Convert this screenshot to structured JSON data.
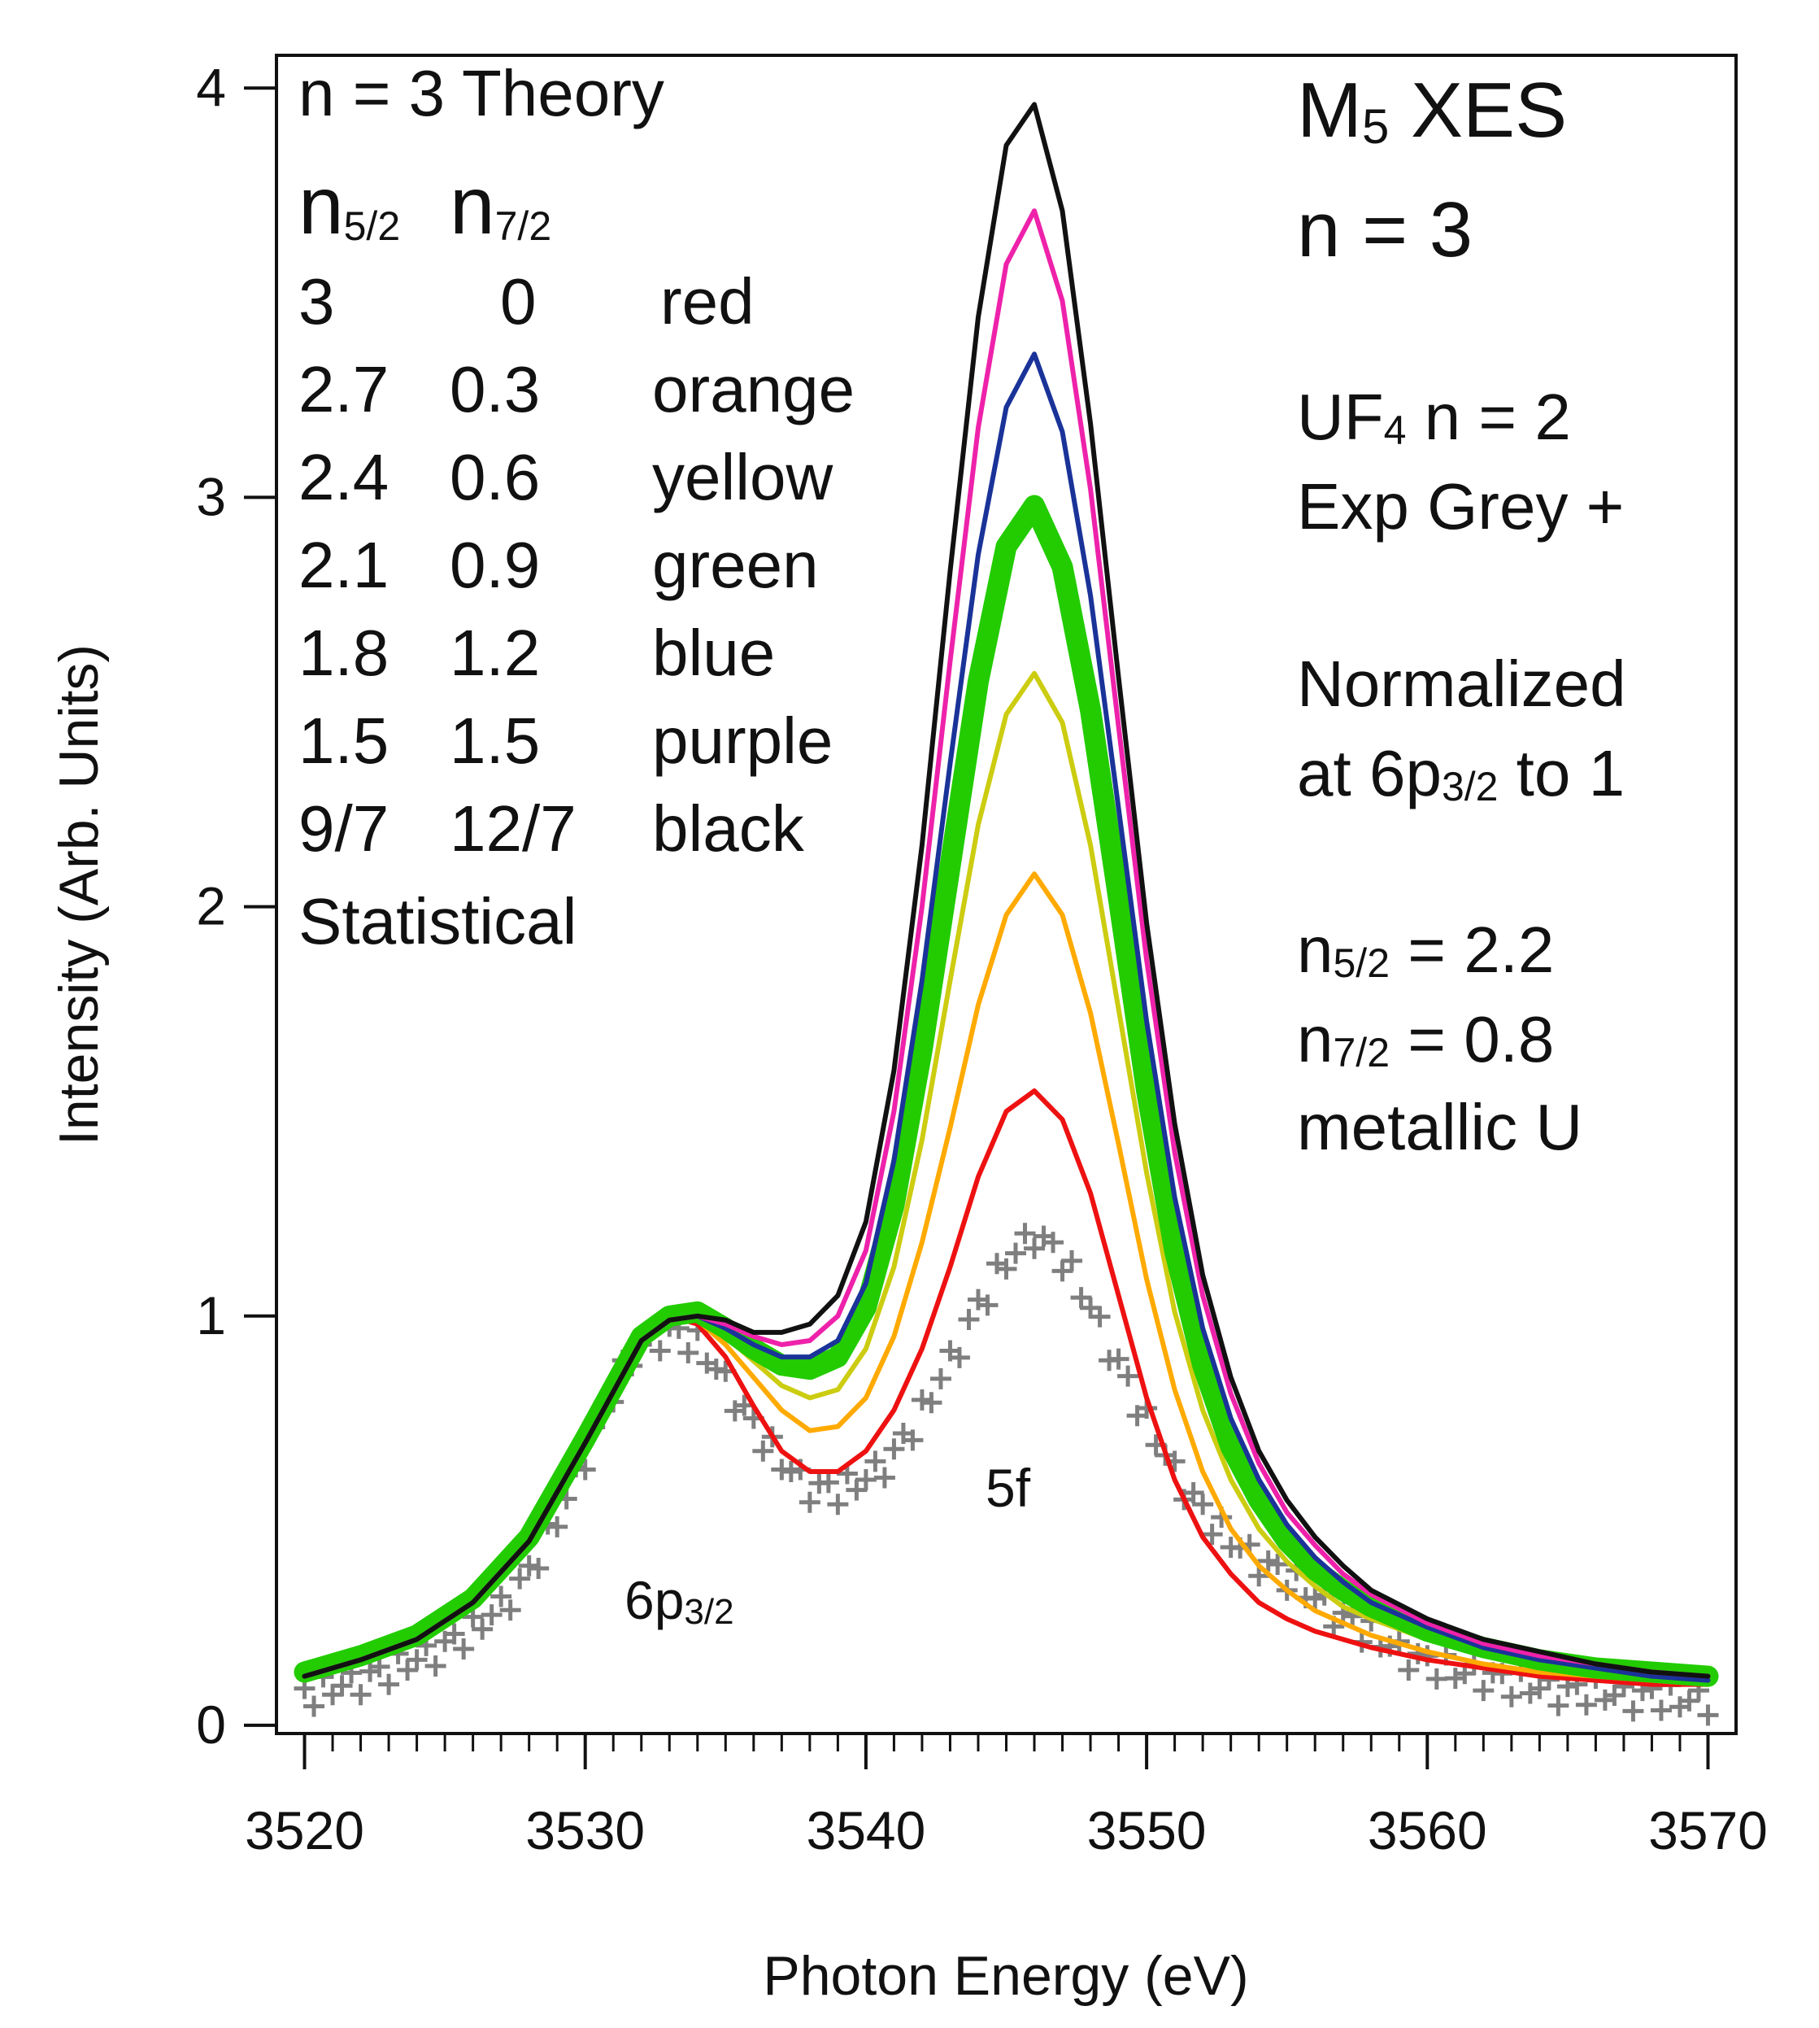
{
  "chart_data": {
    "type": "line",
    "xlabel": "Photon Energy (eV)",
    "ylabel": "Intensity (Arb. Units)",
    "xlim": [
      3519,
      3571
    ],
    "ylim": [
      -0.02,
      4.08
    ],
    "xticks": [
      3520,
      3530,
      3540,
      3550,
      3560,
      3570
    ],
    "yticks": [
      0,
      1,
      2,
      3,
      4
    ],
    "x_minor_step": 1,
    "grid": false,
    "legend_text": {
      "theory": "n = 3 Theory",
      "header": [
        {
          "base": "n",
          "sub": "5/2"
        },
        {
          "base": "n",
          "sub": "7/2"
        }
      ],
      "rows": [
        [
          "3",
          "0",
          "red"
        ],
        [
          "2.7",
          "0.3",
          "orange"
        ],
        [
          "2.4",
          "0.6",
          "yellow"
        ],
        [
          "2.1",
          "0.9",
          "green"
        ],
        [
          "1.8",
          "1.2",
          "blue"
        ],
        [
          "1.5",
          "1.5",
          "purple"
        ],
        [
          "9/7",
          "12/7",
          "black"
        ]
      ],
      "statistical": "Statistical"
    },
    "title_right": {
      "line1_base": "M",
      "line1_sub": "5",
      "line1_rest": " XES",
      "line2": "n = 3"
    },
    "notes_right": {
      "uf_base": "UF",
      "uf_sub": "4",
      "uf_rest": " n = 2",
      "exp": "Exp Grey +",
      "normalized": "Normalized",
      "at_pre": "at 6p",
      "at_sub": "3/2",
      "at_post": " to 1",
      "n52_base": "n",
      "n52_sub": "5/2",
      "n52_rest": " = 2.2",
      "n72_base": "n",
      "n72_sub": "7/2",
      "n72_rest": " = 0.8",
      "metal": "metallic U"
    },
    "annotations": {
      "p6_base": "6p",
      "p6_sub": "3/2",
      "f5": "5f"
    },
    "x": [
      3520,
      3522,
      3524,
      3526,
      3528,
      3530,
      3532,
      3533,
      3534,
      3535,
      3536,
      3537,
      3538,
      3539,
      3540,
      3541,
      3542,
      3543,
      3544,
      3545,
      3546,
      3547,
      3548,
      3549,
      3550,
      3551,
      3552,
      3553,
      3554,
      3555,
      3556,
      3557,
      3558,
      3560,
      3562,
      3564,
      3566,
      3568,
      3570
    ],
    "series": [
      {
        "name": "red",
        "color": "#ee1111",
        "width": 6,
        "values": [
          0.13,
          0.17,
          0.22,
          0.31,
          0.46,
          0.7,
          0.95,
          1.0,
          0.98,
          0.9,
          0.78,
          0.67,
          0.62,
          0.62,
          0.67,
          0.77,
          0.92,
          1.12,
          1.34,
          1.5,
          1.55,
          1.48,
          1.3,
          1.05,
          0.8,
          0.6,
          0.46,
          0.37,
          0.3,
          0.26,
          0.23,
          0.21,
          0.19,
          0.16,
          0.14,
          0.12,
          0.11,
          0.1,
          0.1
        ]
      },
      {
        "name": "orange",
        "color": "#ffaa00",
        "width": 6,
        "values": [
          0.13,
          0.17,
          0.22,
          0.31,
          0.46,
          0.7,
          0.95,
          1.0,
          0.99,
          0.93,
          0.85,
          0.77,
          0.72,
          0.73,
          0.8,
          0.95,
          1.18,
          1.46,
          1.76,
          1.98,
          2.08,
          1.98,
          1.74,
          1.42,
          1.09,
          0.82,
          0.62,
          0.48,
          0.39,
          0.33,
          0.28,
          0.25,
          0.22,
          0.18,
          0.15,
          0.13,
          0.12,
          0.11,
          0.1
        ]
      },
      {
        "name": "yellow",
        "color": "#cccc11",
        "width": 6,
        "values": [
          0.13,
          0.17,
          0.22,
          0.31,
          0.46,
          0.7,
          0.95,
          1.0,
          1.0,
          0.95,
          0.89,
          0.83,
          0.8,
          0.82,
          0.92,
          1.12,
          1.43,
          1.82,
          2.2,
          2.47,
          2.57,
          2.45,
          2.15,
          1.75,
          1.35,
          1.01,
          0.77,
          0.6,
          0.48,
          0.4,
          0.34,
          0.29,
          0.26,
          0.21,
          0.17,
          0.15,
          0.13,
          0.12,
          0.11
        ]
      },
      {
        "name": "green",
        "color": "#22cc00",
        "width": 26,
        "values": [
          0.13,
          0.17,
          0.22,
          0.31,
          0.46,
          0.7,
          0.95,
          1.0,
          1.01,
          0.97,
          0.92,
          0.88,
          0.87,
          0.9,
          1.02,
          1.27,
          1.65,
          2.1,
          2.55,
          2.88,
          2.98,
          2.83,
          2.48,
          2.02,
          1.55,
          1.16,
          0.88,
          0.68,
          0.55,
          0.45,
          0.38,
          0.33,
          0.29,
          0.23,
          0.19,
          0.16,
          0.14,
          0.13,
          0.12
        ]
      },
      {
        "name": "blue",
        "color": "#1a3399",
        "width": 6,
        "values": [
          0.12,
          0.16,
          0.21,
          0.3,
          0.45,
          0.69,
          0.94,
          0.99,
          1.0,
          0.97,
          0.93,
          0.9,
          0.9,
          0.94,
          1.08,
          1.38,
          1.82,
          2.35,
          2.86,
          3.22,
          3.35,
          3.16,
          2.76,
          2.24,
          1.72,
          1.29,
          0.97,
          0.75,
          0.6,
          0.49,
          0.41,
          0.35,
          0.3,
          0.24,
          0.19,
          0.16,
          0.14,
          0.12,
          0.11
        ]
      },
      {
        "name": "purple",
        "color": "#ee22aa",
        "width": 6,
        "values": [
          0.12,
          0.16,
          0.21,
          0.3,
          0.45,
          0.69,
          0.94,
          0.99,
          1.0,
          0.98,
          0.95,
          0.93,
          0.94,
          1.0,
          1.16,
          1.5,
          2.0,
          2.6,
          3.17,
          3.57,
          3.7,
          3.48,
          3.02,
          2.44,
          1.87,
          1.4,
          1.05,
          0.81,
          0.64,
          0.52,
          0.44,
          0.37,
          0.32,
          0.25,
          0.2,
          0.17,
          0.15,
          0.13,
          0.12
        ]
      },
      {
        "name": "black",
        "color": "#111111",
        "width": 6,
        "values": [
          0.12,
          0.16,
          0.21,
          0.3,
          0.45,
          0.69,
          0.94,
          0.99,
          1.0,
          0.99,
          0.96,
          0.96,
          0.98,
          1.05,
          1.23,
          1.6,
          2.15,
          2.82,
          3.44,
          3.86,
          3.96,
          3.7,
          3.18,
          2.56,
          1.96,
          1.47,
          1.1,
          0.85,
          0.67,
          0.55,
          0.46,
          0.39,
          0.33,
          0.26,
          0.21,
          0.18,
          0.15,
          0.13,
          0.12
        ]
      }
    ],
    "experimental": {
      "name": "Exp Grey +",
      "color": "#7f7f7f",
      "marker": "+",
      "x": [
        3520,
        3521,
        3522,
        3523,
        3524,
        3525,
        3526,
        3527,
        3528,
        3529,
        3530,
        3531,
        3532,
        3533,
        3534,
        3535,
        3536,
        3537,
        3538,
        3539,
        3540,
        3541,
        3542,
        3543,
        3544,
        3545,
        3546,
        3547,
        3548,
        3549,
        3550,
        3551,
        3552,
        3553,
        3554,
        3555,
        3556,
        3557,
        3558,
        3559,
        3560,
        3561,
        3562,
        3563,
        3564,
        3565,
        3566,
        3567,
        3568,
        3569,
        3570
      ],
      "y": [
        0.07,
        0.09,
        0.11,
        0.13,
        0.16,
        0.19,
        0.23,
        0.29,
        0.37,
        0.5,
        0.66,
        0.82,
        0.93,
        0.96,
        0.93,
        0.84,
        0.73,
        0.64,
        0.58,
        0.57,
        0.6,
        0.66,
        0.76,
        0.89,
        1.02,
        1.13,
        1.2,
        1.14,
        1.02,
        0.88,
        0.74,
        0.62,
        0.52,
        0.45,
        0.4,
        0.36,
        0.31,
        0.26,
        0.22,
        0.18,
        0.15,
        0.13,
        0.12,
        0.1,
        0.09,
        0.08,
        0.08,
        0.07,
        0.07,
        0.06,
        0.06
      ]
    }
  }
}
